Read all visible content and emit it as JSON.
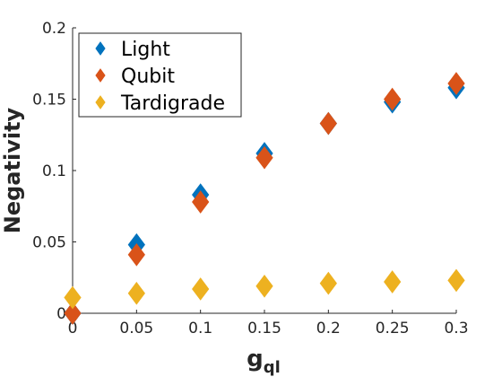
{
  "chart_data": {
    "type": "scatter",
    "xlabel": "g",
    "xlabel_subscript": "ql",
    "ylabel": "Negativity",
    "xlim": [
      0,
      0.3
    ],
    "ylim": [
      0,
      0.2
    ],
    "x_ticks": [
      "0",
      "0.05",
      "0.1",
      "0.15",
      "0.2",
      "0.25",
      "0.3"
    ],
    "y_ticks": [
      "0",
      "0.05",
      "0.1",
      "0.15",
      "0.2"
    ],
    "grid": false,
    "legend_position": "top-left",
    "marker": "diamond",
    "series": [
      {
        "name": "Light",
        "color": "#0072BD",
        "x": [
          0,
          0.05,
          0.1,
          0.15,
          0.2,
          0.25,
          0.3
        ],
        "y": [
          0.0,
          0.048,
          0.083,
          0.112,
          0.133,
          0.148,
          0.158
        ]
      },
      {
        "name": "Qubit",
        "color": "#D95319",
        "x": [
          0,
          0.05,
          0.1,
          0.15,
          0.2,
          0.25,
          0.3
        ],
        "y": [
          0.0,
          0.041,
          0.078,
          0.109,
          0.133,
          0.15,
          0.161
        ]
      },
      {
        "name": "Tardigrade",
        "color": "#EDB120",
        "x": [
          0,
          0.05,
          0.1,
          0.15,
          0.2,
          0.25,
          0.3
        ],
        "y": [
          0.011,
          0.014,
          0.017,
          0.019,
          0.021,
          0.022,
          0.023
        ]
      }
    ]
  }
}
